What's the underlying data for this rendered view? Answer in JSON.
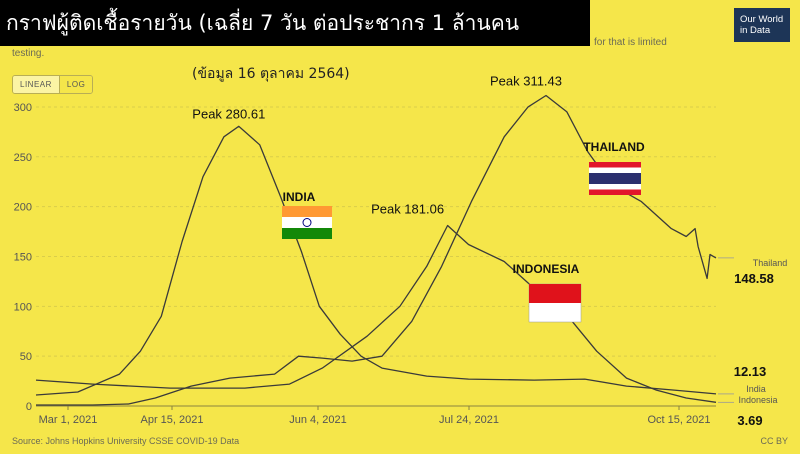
{
  "header": {
    "title": "กราฟผู้ติดเชื้อรายวัน (เฉลี่ย 7 วัน ต่อประชากร 1 ล้านคน",
    "note_right": "for that is limited",
    "note_left": "testing.",
    "date_note": "(ข้อมูล 16 ตุลาคม 2564)",
    "logo_line1": "Our World",
    "logo_line2": "in Data"
  },
  "toggle": {
    "linear_label": "LINEAR",
    "log_label": "LOG",
    "active": "linear"
  },
  "footer": {
    "source": "Source: Johns Hopkins University CSSE COVID-19 Data",
    "license": "CC BY"
  },
  "colors": {
    "background": "#f5e64a",
    "line": "#3a3a3a",
    "grid": "#d9cd4a"
  },
  "chart_data": {
    "type": "line",
    "x_ticks": [
      "Mar 1, 2021",
      "Apr 15, 2021",
      "Jun 4, 2021",
      "Jul 24, 2021",
      "Oct 15, 2021"
    ],
    "y_ticks": [
      0,
      50,
      100,
      150,
      200,
      250,
      300
    ],
    "ylim": [
      0,
      320
    ],
    "xlim": [
      "2021-03-01",
      "2021-10-15"
    ],
    "grid": true,
    "series": [
      {
        "name": "India",
        "end_value": "12.13",
        "points": [
          [
            "2021-03-01",
            11
          ],
          [
            "2021-03-15",
            14
          ],
          [
            "2021-03-29",
            32
          ],
          [
            "2021-04-05",
            55
          ],
          [
            "2021-04-12",
            90
          ],
          [
            "2021-04-19",
            165
          ],
          [
            "2021-04-26",
            230
          ],
          [
            "2021-05-03",
            270
          ],
          [
            "2021-05-08",
            280.61
          ],
          [
            "2021-05-15",
            262
          ],
          [
            "2021-05-22",
            210
          ],
          [
            "2021-05-29",
            155
          ],
          [
            "2021-06-04",
            100
          ],
          [
            "2021-06-11",
            72
          ],
          [
            "2021-06-18",
            50
          ],
          [
            "2021-06-25",
            38
          ],
          [
            "2021-07-10",
            30
          ],
          [
            "2021-07-24",
            27
          ],
          [
            "2021-08-15",
            26
          ],
          [
            "2021-09-01",
            27
          ],
          [
            "2021-09-15",
            20
          ],
          [
            "2021-10-01",
            16
          ],
          [
            "2021-10-15",
            12.13
          ]
        ]
      },
      {
        "name": "Indonesia",
        "end_value": "3.69",
        "points": [
          [
            "2021-03-01",
            26
          ],
          [
            "2021-03-20",
            22
          ],
          [
            "2021-04-15",
            18
          ],
          [
            "2021-05-10",
            18
          ],
          [
            "2021-05-25",
            22
          ],
          [
            "2021-06-05",
            38
          ],
          [
            "2021-06-20",
            70
          ],
          [
            "2021-07-01",
            100
          ],
          [
            "2021-07-10",
            140
          ],
          [
            "2021-07-17",
            181.06
          ],
          [
            "2021-07-24",
            162
          ],
          [
            "2021-08-05",
            145
          ],
          [
            "2021-08-15",
            118
          ],
          [
            "2021-08-25",
            95
          ],
          [
            "2021-09-05",
            55
          ],
          [
            "2021-09-15",
            28
          ],
          [
            "2021-09-25",
            16
          ],
          [
            "2021-10-05",
            8
          ],
          [
            "2021-10-15",
            3.69
          ]
        ]
      },
      {
        "name": "Thailand",
        "end_value": "148.58",
        "points": [
          [
            "2021-03-01",
            1
          ],
          [
            "2021-03-20",
            1
          ],
          [
            "2021-04-01",
            2
          ],
          [
            "2021-04-10",
            8
          ],
          [
            "2021-04-22",
            20
          ],
          [
            "2021-05-05",
            28
          ],
          [
            "2021-05-20",
            32
          ],
          [
            "2021-05-28",
            50
          ],
          [
            "2021-06-05",
            48
          ],
          [
            "2021-06-15",
            45
          ],
          [
            "2021-06-25",
            50
          ],
          [
            "2021-07-05",
            85
          ],
          [
            "2021-07-15",
            140
          ],
          [
            "2021-07-25",
            205
          ],
          [
            "2021-08-05",
            270
          ],
          [
            "2021-08-13",
            300
          ],
          [
            "2021-08-19",
            311.43
          ],
          [
            "2021-08-26",
            295
          ],
          [
            "2021-09-02",
            255
          ],
          [
            "2021-09-10",
            222
          ],
          [
            "2021-09-20",
            205
          ],
          [
            "2021-09-30",
            178
          ],
          [
            "2021-10-05",
            170
          ],
          [
            "2021-10-08",
            178
          ],
          [
            "2021-10-09",
            160
          ],
          [
            "2021-10-12",
            128
          ],
          [
            "2021-10-13",
            152
          ],
          [
            "2021-10-15",
            148.58
          ]
        ]
      }
    ],
    "peaks": [
      {
        "series": "India",
        "date": "2021-05-08",
        "value": 280.61,
        "label": "Peak 280.61"
      },
      {
        "series": "Indonesia",
        "date": "2021-07-17",
        "value": 181.06,
        "label": "Peak 181.06"
      },
      {
        "series": "Thailand",
        "date": "2021-08-19",
        "value": 311.43,
        "label": "Peak 311.43"
      }
    ],
    "annotations": [
      {
        "label": "INDIA",
        "flag": "india-flag"
      },
      {
        "label": "INDONESIA",
        "flag": "indonesia-flag"
      },
      {
        "label": "THAILAND",
        "flag": "thailand-flag"
      }
    ]
  }
}
